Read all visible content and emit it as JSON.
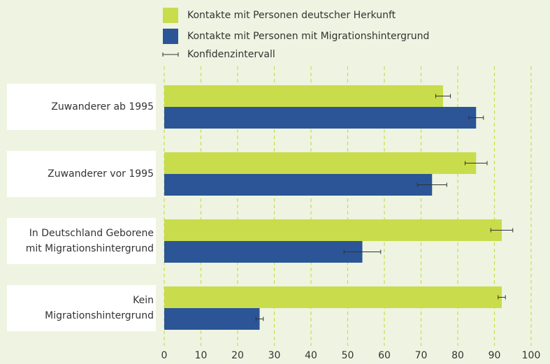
{
  "chart_data": {
    "type": "bar",
    "orientation": "horizontal",
    "categories": [
      "Zuwanderer ab 1995",
      "Zuwanderer vor 1995",
      "In Deutschland Geborene\nmit Migrationshintergrund",
      "Kein\nMigrationshintergrund"
    ],
    "series": [
      {
        "name": "Kontakte mit Personen deutscher Herkunft",
        "color": "#c9dc4b",
        "values": [
          76,
          85,
          92,
          92
        ],
        "errors": [
          2,
          3,
          3,
          1
        ]
      },
      {
        "name": "Kontakte mit Personen mit Migrationshintergrund",
        "color": "#2b5597",
        "values": [
          85,
          73,
          54,
          26
        ],
        "errors": [
          2,
          4,
          5,
          1
        ]
      }
    ],
    "ci_label": "Konfidenzintervall",
    "xlim": [
      0,
      100
    ],
    "xticks": [
      0,
      10,
      20,
      30,
      40,
      50,
      60,
      70,
      80,
      90,
      100
    ],
    "grid": true
  }
}
